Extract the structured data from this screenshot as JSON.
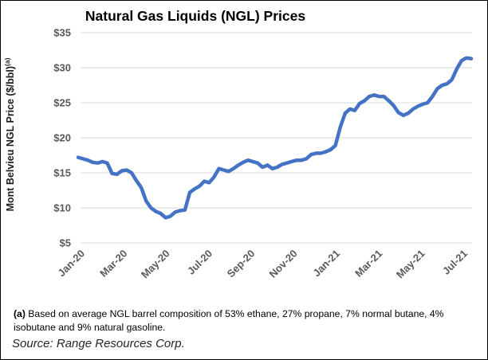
{
  "chart_data": {
    "type": "line",
    "title": "Natural Gas Liquids (NGL) Prices",
    "ylabel": "Mont Belvieu NGL Price ($/bbl)",
    "ylabel_superscript": "(a)",
    "ylim": [
      5,
      35
    ],
    "y_tick_values": [
      35,
      30,
      25,
      20,
      15,
      10,
      5
    ],
    "y_tick_labels": [
      "$35",
      "$30",
      "$25",
      "$20",
      "$15",
      "$10",
      "$5"
    ],
    "x_tick_labels": [
      "Jan-20",
      "Mar-20",
      "May-20",
      "Jul-20",
      "Sep-20",
      "Nov-20",
      "Jan-21",
      "Mar-21",
      "May-21",
      "Jul-21"
    ],
    "x_range_note": "weekly points from Jan-2020 through mid-Jul-2021, values estimated from plot",
    "grid": "horizontal gridlines only",
    "legend": "none",
    "series": [
      {
        "name": "Mont Belvieu NGL price ($/bbl)",
        "color": "#4472C4",
        "values": [
          17.2,
          17.0,
          16.8,
          16.5,
          16.4,
          16.6,
          16.4,
          14.9,
          14.8,
          15.3,
          15.4,
          15.0,
          13.9,
          12.9,
          11.0,
          10.0,
          9.5,
          9.2,
          8.6,
          8.8,
          9.4,
          9.6,
          9.7,
          12.2,
          12.7,
          13.1,
          13.8,
          13.6,
          14.4,
          15.6,
          15.4,
          15.2,
          15.6,
          16.1,
          16.5,
          16.8,
          16.6,
          16.4,
          15.8,
          16.1,
          15.6,
          15.8,
          16.2,
          16.4,
          16.6,
          16.8,
          16.8,
          17.0,
          17.6,
          17.8,
          17.8,
          18.0,
          18.3,
          18.9,
          21.5,
          23.5,
          24.1,
          23.9,
          24.9,
          25.3,
          25.9,
          26.1,
          25.9,
          25.9,
          25.3,
          24.6,
          23.6,
          23.2,
          23.5,
          24.1,
          24.5,
          24.8,
          25.0,
          25.9,
          27.0,
          27.5,
          27.7,
          28.3,
          29.8,
          31.0,
          31.4,
          31.3
        ]
      }
    ]
  },
  "footnote": {
    "marker": "(a)",
    "text": " Based on average NGL barrel composition of 53% ethane, 27% propane, 7% normal butane, 4% isobutane and 9% natural gasoline."
  },
  "source": {
    "text": "Source: Range Resources Corp."
  },
  "colors": {
    "line": "#4472C4",
    "grid": "#d9d9d9",
    "tick_text": "#595959",
    "title_text": "#000000"
  }
}
